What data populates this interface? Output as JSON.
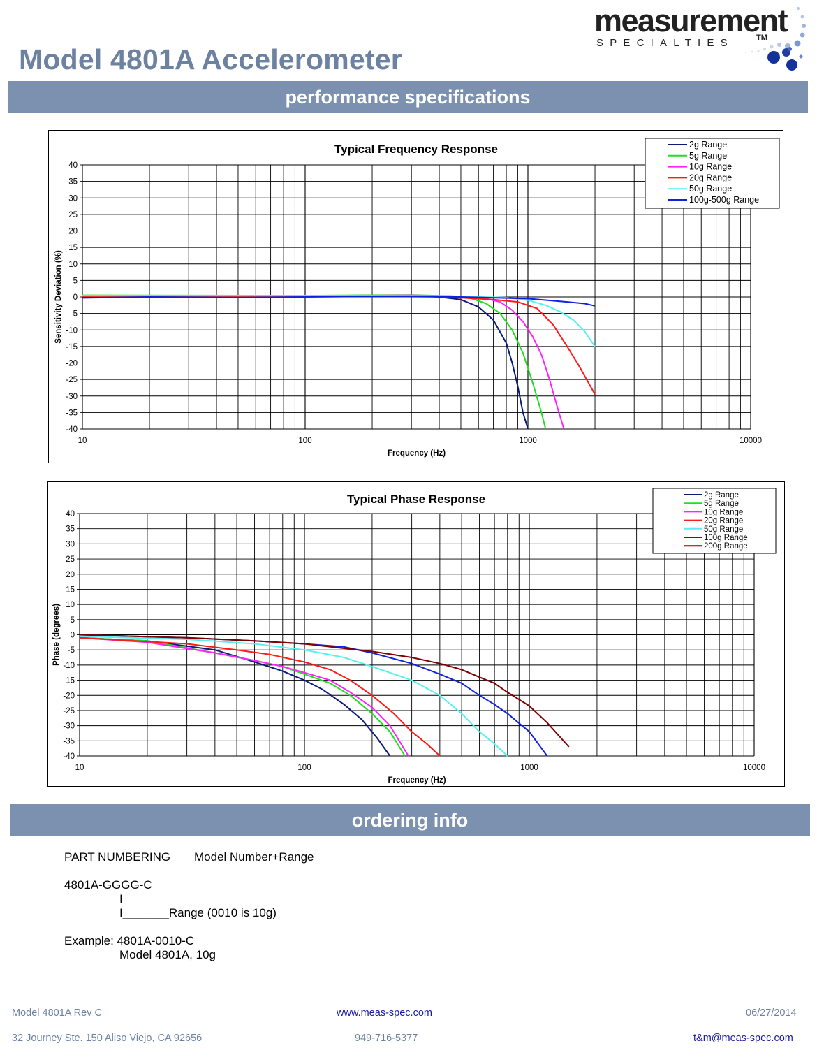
{
  "page": {
    "title": "Model 4801A Accelerometer"
  },
  "logo": {
    "word": "measurement",
    "sub": "SPECIALTIES",
    "tm": "TM"
  },
  "sections": {
    "performance": "performance specifications",
    "ordering": "ordering info"
  },
  "colors": {
    "accent": "#7b91af",
    "title": "#6d82a1",
    "series_2g": "#0a1a7a",
    "series_5g": "#22dd22",
    "series_10g": "#ff22ff",
    "series_20g": "#ff1a1a",
    "series_50g": "#55f0f0",
    "series_100g": "#1020e0",
    "series_200g": "#800000"
  },
  "chart_data": [
    {
      "type": "line",
      "title": "Typical Frequency Response",
      "xlabel": "Frequency (Hz)",
      "ylabel": "Sensitivity Deviation (%)",
      "xscale": "log",
      "xlim": [
        10,
        10000
      ],
      "ylim": [
        -40,
        40
      ],
      "xticks": [
        "10",
        "100",
        "1000",
        "10000"
      ],
      "yticks": [
        "40",
        "35",
        "30",
        "25",
        "20",
        "15",
        "10",
        "5",
        "0",
        "-5",
        "-10",
        "-15",
        "-20",
        "-25",
        "-30",
        "-35",
        "-40"
      ],
      "legend": "top-right",
      "series": [
        {
          "name": "2g Range",
          "color": "#0a1a7a",
          "x": [
            10,
            100,
            200,
            300,
            400,
            500,
            600,
            700,
            800,
            850,
            900,
            950,
            1000
          ],
          "y": [
            0.3,
            0.3,
            0.5,
            0.4,
            0.0,
            -0.8,
            -3.0,
            -7.0,
            -14.0,
            -20.0,
            -27.0,
            -35.0,
            -40.0
          ]
        },
        {
          "name": "5g Range",
          "color": "#22dd22",
          "x": [
            10,
            100,
            300,
            450,
            550,
            650,
            750,
            850,
            950,
            1050,
            1150,
            1200
          ],
          "y": [
            0.5,
            0.4,
            0.6,
            0.3,
            -0.3,
            -2.0,
            -5.0,
            -10.0,
            -17.0,
            -26.0,
            -35.0,
            -40.0
          ]
        },
        {
          "name": "10g Range",
          "color": "#ff22ff",
          "x": [
            10,
            100,
            300,
            500,
            650,
            750,
            850,
            950,
            1050,
            1150,
            1250,
            1350,
            1450
          ],
          "y": [
            0.3,
            0.3,
            0.5,
            0.2,
            -0.5,
            -1.5,
            -4.0,
            -7.5,
            -12.0,
            -17.5,
            -25.0,
            -33.0,
            -40.0
          ]
        },
        {
          "name": "20g Range",
          "color": "#ff1a1a",
          "x": [
            10,
            100,
            400,
            700,
            900,
            1100,
            1300,
            1500,
            1700,
            2000
          ],
          "y": [
            0.2,
            0.2,
            0.1,
            -0.8,
            -1.5,
            -3.5,
            -8.5,
            -15.0,
            -21.0,
            -29.5
          ]
        },
        {
          "name": "50g Range",
          "color": "#55f0f0",
          "x": [
            10,
            100,
            400,
            800,
            1000,
            1200,
            1400,
            1600,
            1800,
            2000
          ],
          "y": [
            0.4,
            0.4,
            0.3,
            -0.2,
            -1.0,
            -2.5,
            -4.5,
            -7.0,
            -10.5,
            -15.0
          ]
        },
        {
          "name": "100g-500g Range",
          "color": "#1020e0",
          "x": [
            10,
            20,
            50,
            100,
            200,
            500,
            1000,
            1500,
            1800,
            2000
          ],
          "y": [
            -0.3,
            0.0,
            -0.2,
            0.0,
            0.2,
            0.0,
            -0.5,
            -1.5,
            -2.0,
            -2.7
          ]
        }
      ]
    },
    {
      "type": "line",
      "title": "Typical Phase Response",
      "xlabel": "Frequency (Hz)",
      "ylabel": "Phase (degrees)",
      "xscale": "log",
      "xlim": [
        10,
        10000
      ],
      "ylim": [
        -40,
        40
      ],
      "xticks": [
        "10",
        "100",
        "1000",
        "10000"
      ],
      "yticks": [
        "40",
        "35",
        "30",
        "25",
        "20",
        "15",
        "10",
        "5",
        "0",
        "-5",
        "-10",
        "-15",
        "-20",
        "-25",
        "-30",
        "-35",
        "-40"
      ],
      "legend": "top-right",
      "series": [
        {
          "name": "2g Range",
          "color": "#0a1a7a",
          "x": [
            10,
            20,
            40,
            60,
            80,
            100,
            120,
            150,
            180,
            210,
            240
          ],
          "y": [
            -1,
            -2,
            -5,
            -9,
            -12,
            -15,
            -18,
            -23,
            -28,
            -34,
            -40
          ]
        },
        {
          "name": "5g Range",
          "color": "#22dd22",
          "x": [
            10,
            20,
            40,
            60,
            80,
            100,
            130,
            160,
            200,
            240,
            280
          ],
          "y": [
            -1,
            -2,
            -6,
            -8.5,
            -10.5,
            -13,
            -16,
            -20,
            -26,
            -32,
            -40
          ]
        },
        {
          "name": "10g Range",
          "color": "#ff22ff",
          "x": [
            10,
            20,
            40,
            60,
            80,
            100,
            130,
            160,
            200,
            240,
            290
          ],
          "y": [
            -1,
            -2.5,
            -6,
            -8.5,
            -10.5,
            -12.5,
            -15,
            -19,
            -24,
            -30,
            -40
          ]
        },
        {
          "name": "20g Range",
          "color": "#ff1a1a",
          "x": [
            10,
            30,
            50,
            70,
            100,
            130,
            160,
            200,
            250,
            300,
            350,
            400
          ],
          "y": [
            -1,
            -3,
            -5,
            -6.5,
            -9,
            -11.5,
            -15,
            -20,
            -26,
            -32,
            -36,
            -40
          ]
        },
        {
          "name": "50g Range",
          "color": "#55f0f0",
          "x": [
            10,
            30,
            60,
            100,
            150,
            200,
            300,
            400,
            500,
            600,
            700,
            800
          ],
          "y": [
            -0.5,
            -1.5,
            -3,
            -5,
            -7.5,
            -10.5,
            -15,
            -20,
            -26,
            -32,
            -36,
            -40
          ]
        },
        {
          "name": "100g Range",
          "color": "#1020e0",
          "x": [
            10,
            30,
            60,
            100,
            150,
            200,
            300,
            400,
            500,
            600,
            700,
            800,
            1000,
            1200
          ],
          "y": [
            0,
            -1,
            -2,
            -3,
            -4,
            -6,
            -9.5,
            -13,
            -16,
            -20,
            -23,
            -26,
            -32,
            -40
          ]
        },
        {
          "name": "200g Range",
          "color": "#800000",
          "x": [
            10,
            30,
            60,
            100,
            150,
            200,
            300,
            400,
            500,
            600,
            700,
            800,
            1000,
            1200,
            1500
          ],
          "y": [
            0,
            -1,
            -2,
            -3,
            -4.5,
            -5.5,
            -7.5,
            -9.5,
            -11.5,
            -14,
            -16,
            -19,
            -23.5,
            -29,
            -37
          ]
        }
      ]
    }
  ],
  "ordering": {
    "part_label": "PART NUMBERING",
    "part_value": "Model Number+Range",
    "code": "4801A-GGGG-C",
    "pipe": "I",
    "range_line": "I_______Range (0010 is 10g)",
    "example_line": "Example: 4801A-0010-C",
    "example_desc": "Model 4801A, 10g"
  },
  "footer": {
    "model": "Model 4801A Rev C",
    "website": "www.meas-spec.com",
    "date": "06/27/2014",
    "address": "32 Journey Ste. 150 Aliso Viejo, CA 92656",
    "phone": "949-716-5377",
    "email": "t&m@meas-spec.com"
  }
}
